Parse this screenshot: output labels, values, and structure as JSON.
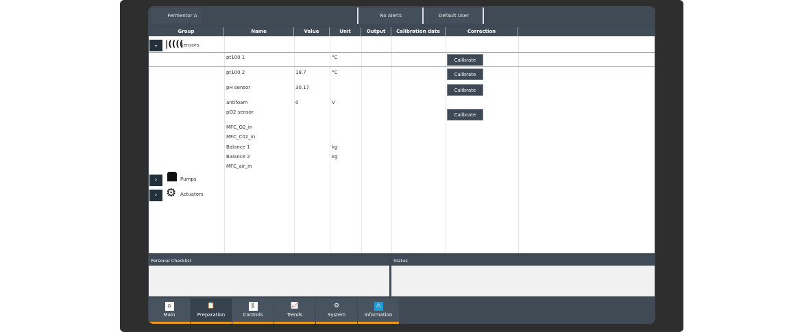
{
  "header": {
    "title": "Fermentor A",
    "alerts": "No Alerts",
    "user": "Default User"
  },
  "columns": [
    "Group",
    "Name",
    "Value",
    "Unit",
    "Output",
    "Calibration date",
    "Correction"
  ],
  "groups": {
    "sensors": "Sensors",
    "pumps": "Pumps",
    "actuators": "Actuators"
  },
  "rows": [
    {
      "name": "pt100 1",
      "value": "",
      "unit": "°C",
      "calibrate": "Calibrate"
    },
    {
      "name": "pt100 2",
      "value": "18.7",
      "unit": "°C",
      "calibrate": "Calibrate"
    },
    {
      "name": "pH sensor",
      "value": "30.17",
      "unit": "",
      "calibrate": "Calibrate"
    },
    {
      "name": "antifoam",
      "value": "0",
      "unit": "V"
    },
    {
      "name": "pO2 sensor",
      "value": "",
      "unit": "",
      "calibrate": "Calibrate"
    },
    {
      "name": "MFC_O2_in",
      "value": "",
      "unit": ""
    },
    {
      "name": "MFC_C02_in",
      "value": "",
      "unit": ""
    },
    {
      "name": "Balance 1",
      "value": "",
      "unit": "kg"
    },
    {
      "name": "Balance 2",
      "value": "",
      "unit": "kg"
    },
    {
      "name": "MFC_air_in",
      "value": "",
      "unit": ""
    }
  ],
  "panels": {
    "checklist": "Personal Checklist",
    "status": "Status"
  },
  "nav": [
    {
      "label": "Main",
      "icon": "home-icon"
    },
    {
      "label": "Preparation",
      "icon": "clipboard-icon"
    },
    {
      "label": "Controls",
      "icon": "sliders-icon"
    },
    {
      "label": "Trends",
      "icon": "chart-icon"
    },
    {
      "label": "System",
      "icon": "system-gear-icon"
    },
    {
      "label": "Information",
      "icon": "warning-icon"
    }
  ],
  "colors": {
    "accent": "#f09a1a",
    "bar": "#3f4a55"
  }
}
